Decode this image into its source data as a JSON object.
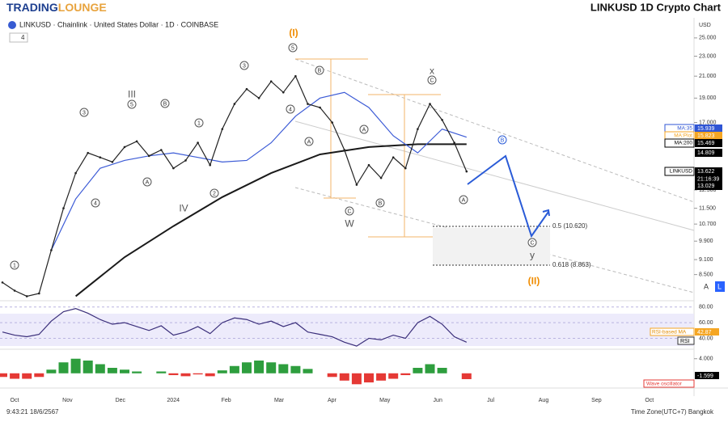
{
  "header": {
    "logo": [
      "TRADING",
      "LOUNGE"
    ],
    "title": "LINKUSD 1D Crypto Chart"
  },
  "symbol": {
    "text": "LINKUSD · Chainlink · United States Dollar · 1D · COINBASE",
    "indicators": "4"
  },
  "price_chart": {
    "currency": "USD",
    "log_scale": true,
    "ylim": [
      7.6,
      27.4
    ],
    "yticks": [
      {
        "value": 25,
        "label": "25.000"
      },
      {
        "value": 23,
        "label": "23.000"
      },
      {
        "value": 21,
        "label": "21.000"
      },
      {
        "value": 19,
        "label": "19.000"
      },
      {
        "value": 17,
        "label": "17.000"
      },
      {
        "value": 12.5,
        "label": "12.500"
      },
      {
        "value": 11.5,
        "label": "11.500"
      },
      {
        "value": 10.7,
        "label": "10.700"
      },
      {
        "value": 9.9,
        "label": "9.900"
      },
      {
        "value": 9.1,
        "label": "9.100"
      },
      {
        "value": 8.5,
        "label": "8.500"
      }
    ],
    "close": [
      8.2,
      7.9,
      7.7,
      7.8,
      9.5,
      11.5,
      13.5,
      14.8,
      14.5,
      14.2,
      15.2,
      15.6,
      14.6,
      15.0,
      13.8,
      14.3,
      15.5,
      14.0,
      16.5,
      18.5,
      19.8,
      19.0,
      20.5,
      19.5,
      21.0,
      18.5,
      18.2,
      17.0,
      15.0,
      12.8,
      14.0,
      13.2,
      14.5,
      13.8,
      16.5,
      18.5,
      17.2,
      15.5,
      13.6
    ],
    "close_color": "#222222",
    "ma_fast": [
      9.5,
      12.0,
      13.8,
      14.3,
      14.6,
      14.8,
      14.5,
      14.2,
      14.3,
      15.5,
      17.5,
      19.0,
      19.5,
      18.2,
      16.0,
      14.8,
      16.5,
      15.9
    ],
    "ma_fast_color": "#3c5bd6",
    "ma200": [
      7.7,
      9.2,
      10.6,
      12.1,
      13.5,
      14.7,
      15.2,
      15.4,
      15.4
    ],
    "ma200_color": "#1a1a1a",
    "badges": [
      {
        "label": "MA:35",
        "value": 15.939,
        "color": "#2f55d4"
      },
      {
        "label": "MA:Plot",
        "value": 15.823,
        "color": "#f5a623"
      },
      {
        "label": "MA:200",
        "value": 15.469,
        "color": "#000000"
      },
      {
        "value": 14.809,
        "color": "#000000"
      },
      {
        "label": "LINKUSD",
        "value": 13.622,
        "time": "21:16:39",
        "color": "#000000"
      },
      {
        "value": 13.029,
        "color": "#000000"
      }
    ],
    "wave_labels": [
      "1",
      "3",
      "III",
      "5",
      "B",
      "A",
      "4",
      "1",
      "2",
      "IV",
      "3",
      "4",
      "(I)",
      "5",
      "B",
      "A",
      "A",
      "C",
      "W",
      "B",
      "x",
      "C",
      "B",
      "A",
      "C",
      "y",
      "(II)"
    ],
    "fib_labels": [
      "0.5 (10.620)",
      "0.618 (8.863)"
    ]
  },
  "rsi": {
    "ylim": [
      26,
      88
    ],
    "yticks": [
      {
        "value": 80,
        "label": "80.00"
      },
      {
        "value": 60,
        "label": "60.00"
      },
      {
        "value": 40,
        "label": "40.00"
      }
    ],
    "values": [
      48,
      44,
      42,
      45,
      62,
      74,
      78,
      72,
      64,
      58,
      60,
      55,
      50,
      56,
      44,
      48,
      55,
      46,
      60,
      66,
      64,
      58,
      62,
      55,
      60,
      48,
      45,
      42,
      35,
      30,
      40,
      38,
      44,
      40,
      60,
      68,
      58,
      42,
      35
    ],
    "color": "#3a2e7a",
    "ma_label": "RSI-based MA",
    "ma_value": 42.87,
    "label": "RSI"
  },
  "oscillator": {
    "ylim": [
      -3.6,
      6.6
    ],
    "yticks": [
      {
        "value": 4,
        "label": "4.000"
      }
    ],
    "values": [
      -1,
      -1.5,
      -1.5,
      -1,
      1,
      3,
      4,
      3.5,
      2.5,
      1.5,
      1,
      0.5,
      0,
      0.5,
      -0.5,
      -0.8,
      -0.3,
      -0.8,
      0.8,
      2,
      3,
      3.5,
      3,
      2.5,
      2,
      1.2,
      0,
      -1,
      -2,
      -3,
      -2.5,
      -2,
      -1.5,
      -0.5,
      1.5,
      2.5,
      1.5,
      0,
      -1.6
    ],
    "last_value": -1.599,
    "name": "Wave oscillator",
    "up_color": "#2e9e3e",
    "down_color": "#e53935"
  },
  "time_axis": [
    "Oct",
    "Nov",
    "Dec",
    "2024",
    "Feb",
    "Mar",
    "Apr",
    "May",
    "Jun",
    "Jul",
    "Aug",
    "Sep",
    "Oct"
  ],
  "footer": {
    "time": "9:43:21 18/6/2567",
    "timezone": "Time Zone(UTC+7) Bangkok"
  },
  "buttons": [
    "A",
    "L"
  ]
}
